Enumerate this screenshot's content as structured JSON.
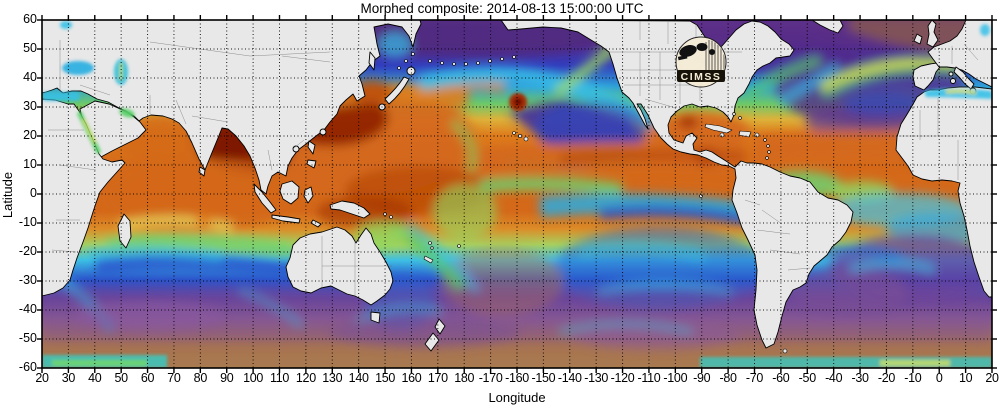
{
  "title": "Morphed composite: 2014-08-13 15:00:00 UTC",
  "axes": {
    "x_label": "Longitude",
    "y_label": "Latitude",
    "x_ticks": [
      "20",
      "30",
      "40",
      "50",
      "60",
      "70",
      "80",
      "90",
      "100",
      "110",
      "120",
      "130",
      "140",
      "150",
      "160",
      "170",
      "180",
      "-170",
      "-160",
      "-150",
      "-140",
      "-130",
      "-120",
      "-110",
      "-100",
      "-90",
      "-80",
      "-70",
      "-60",
      "-50",
      "-40",
      "-30",
      "-20",
      "-10",
      "0",
      "10",
      "20"
    ],
    "y_ticks": [
      "60",
      "50",
      "40",
      "30",
      "20",
      "10",
      "0",
      "-10",
      "-20",
      "-30",
      "-40",
      "-50",
      "-60"
    ]
  },
  "logo": {
    "text": "CIMSS"
  },
  "chart_data": {
    "type": "heatmap",
    "title": "Morphed composite: 2014-08-13 15:00:00 UTC",
    "xlabel": "Longitude",
    "ylabel": "Latitude",
    "x_tick_labels": [
      "20",
      "30",
      "40",
      "50",
      "60",
      "70",
      "80",
      "90",
      "100",
      "110",
      "120",
      "130",
      "140",
      "150",
      "160",
      "170",
      "180",
      "-170",
      "-160",
      "-150",
      "-140",
      "-130",
      "-120",
      "-110",
      "-100",
      "-90",
      "-80",
      "-70",
      "-60",
      "-50",
      "-40",
      "-30",
      "-20",
      "-10",
      "0",
      "10",
      "20"
    ],
    "y_tick_labels": [
      "60",
      "50",
      "40",
      "30",
      "20",
      "10",
      "0",
      "-10",
      "-20",
      "-30",
      "-40",
      "-50",
      "-60"
    ],
    "ylim": [
      -60,
      60
    ],
    "x_axis_note": "longitude wraps eastward from 20E through 180 back to 20E",
    "grid": "black dotted graticule every 10 degrees",
    "legend_position": "none",
    "land_color": "#e8e8e8",
    "coastline_color": "#000000",
    "palette_low_to_high": [
      "#54298a",
      "#333dbd",
      "#2f9fd8",
      "#3ec0e4",
      "#6cc96a",
      "#c8e060",
      "#ddb23a",
      "#de7d1d",
      "#b84a08",
      "#8a1a02",
      "#7a1403"
    ],
    "southern_dry_colors": [
      "#8a5a92",
      "#a87a50"
    ],
    "features": [
      "broad orange-red moist band across the tropics (ITCZ) in Indian, Pacific and Atlantic oceans",
      "darkest red moisture plumes over Bay of Bengal, South China Sea and west Pacific warm pool",
      "dry dark purple-blue wedge in the northeast Pacific off Baja California",
      "dry purple subtropical North Atlantic and South Atlantic",
      "yellow-green moisture streak arcing across the North Atlantic toward Europe",
      "small intense red vortex northeast of Hawaii",
      "tan-brown and purple dry air over the Southern Ocean with cyan frontal filaments",
      "land masses masked light gray; CIMSS logo over central North America"
    ]
  }
}
